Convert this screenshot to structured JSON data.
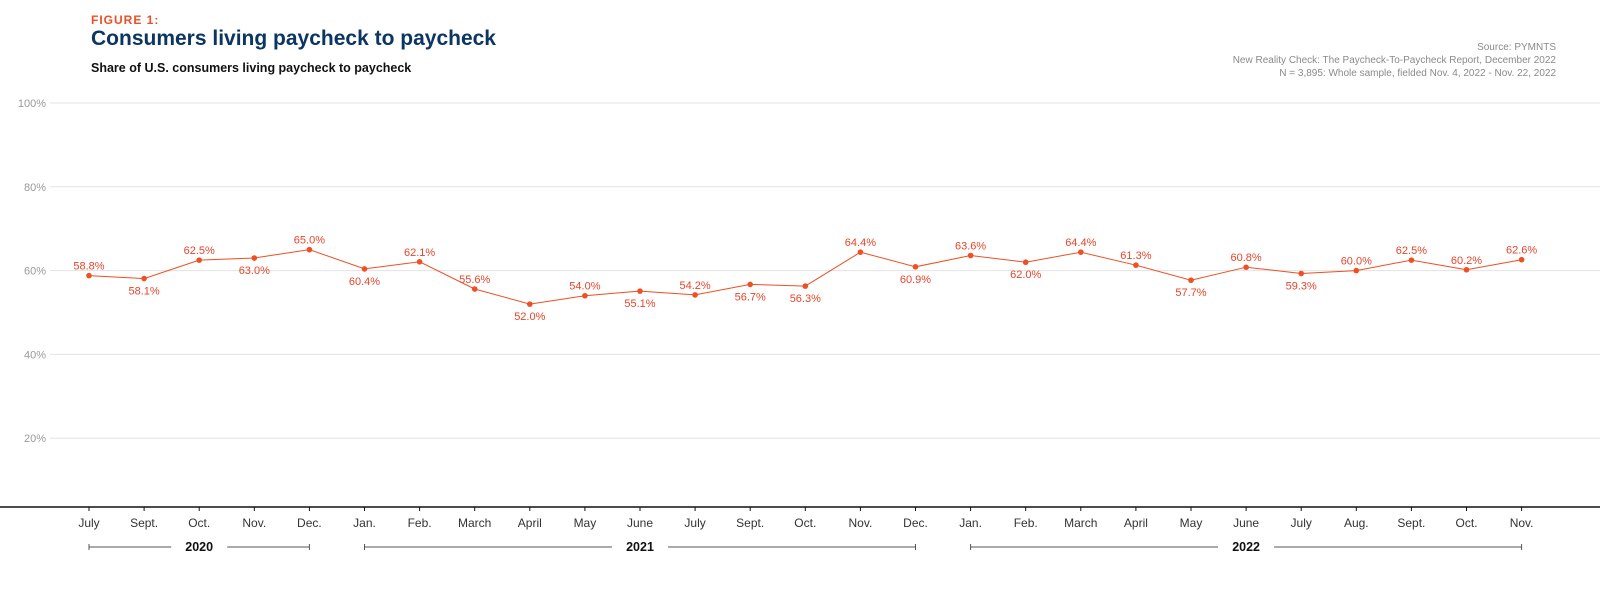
{
  "figure_label": "FIGURE 1:",
  "title": "Consumers living paycheck to paycheck",
  "subtitle": "Share of U.S. consumers living paycheck to paycheck",
  "source_lines": [
    "Source: PYMNTS",
    "New Reality Check: The Paycheck-To-Paycheck Report, December 2022",
    "N = 3,895: Whole sample, fielded Nov. 4, 2022 - Nov. 22, 2022"
  ],
  "colors": {
    "series": "#f04e23",
    "label": "#e8442a",
    "title": "#0b3563",
    "grid": "#e3e3e3",
    "axis": "#111111"
  },
  "chart_data": {
    "type": "line",
    "title": "Consumers living paycheck to paycheck",
    "ylabel": "Share of U.S. consumers living paycheck to paycheck",
    "ylim": [
      0,
      100
    ],
    "yticks": [
      20,
      40,
      60,
      80,
      100
    ],
    "ytick_labels": [
      "20%",
      "40%",
      "60%",
      "80%",
      "100%"
    ],
    "grid": true,
    "categories": [
      "July",
      "Sept.",
      "Oct.",
      "Nov.",
      "Dec.",
      "Jan.",
      "Feb.",
      "March",
      "April",
      "May",
      "June",
      "July",
      "Sept.",
      "Oct.",
      "Nov.",
      "Dec.",
      "Jan.",
      "Feb.",
      "March",
      "April",
      "May",
      "June",
      "July",
      "Aug.",
      "Sept.",
      "Oct.",
      "Nov."
    ],
    "series": [
      {
        "name": "Share of U.S. consumers living paycheck to paycheck",
        "values": [
          58.8,
          58.1,
          62.5,
          63.0,
          65.0,
          60.4,
          62.1,
          55.6,
          52.0,
          54.0,
          55.1,
          54.2,
          56.7,
          56.3,
          64.4,
          60.9,
          63.6,
          62.0,
          64.4,
          61.3,
          57.7,
          60.8,
          59.3,
          60.0,
          62.5,
          60.2,
          62.6
        ],
        "labels": [
          "58.8%",
          "58.1%",
          "62.5%",
          "63.0%",
          "65.0%",
          "60.4%",
          "62.1%",
          "55.6%",
          "52.0%",
          "54.0%",
          "55.1%",
          "54.2%",
          "56.7%",
          "56.3%",
          "64.4%",
          "60.9%",
          "63.6%",
          "62.0%",
          "64.4%",
          "61.3%",
          "57.7%",
          "60.8%",
          "59.3%",
          "60.0%",
          "62.5%",
          "60.2%",
          "62.6%"
        ]
      }
    ],
    "label_positions": [
      "above",
      "below",
      "above",
      "below",
      "above",
      "below",
      "above",
      "above",
      "below",
      "above",
      "below",
      "above",
      "below",
      "below",
      "above",
      "below",
      "above",
      "below",
      "above",
      "above",
      "below",
      "above",
      "below",
      "above",
      "above",
      "above",
      "above"
    ],
    "year_groups": [
      {
        "label": "2020",
        "start": 0,
        "end": 4
      },
      {
        "label": "2021",
        "start": 5,
        "end": 15
      },
      {
        "label": "2022",
        "start": 16,
        "end": 26
      }
    ]
  }
}
